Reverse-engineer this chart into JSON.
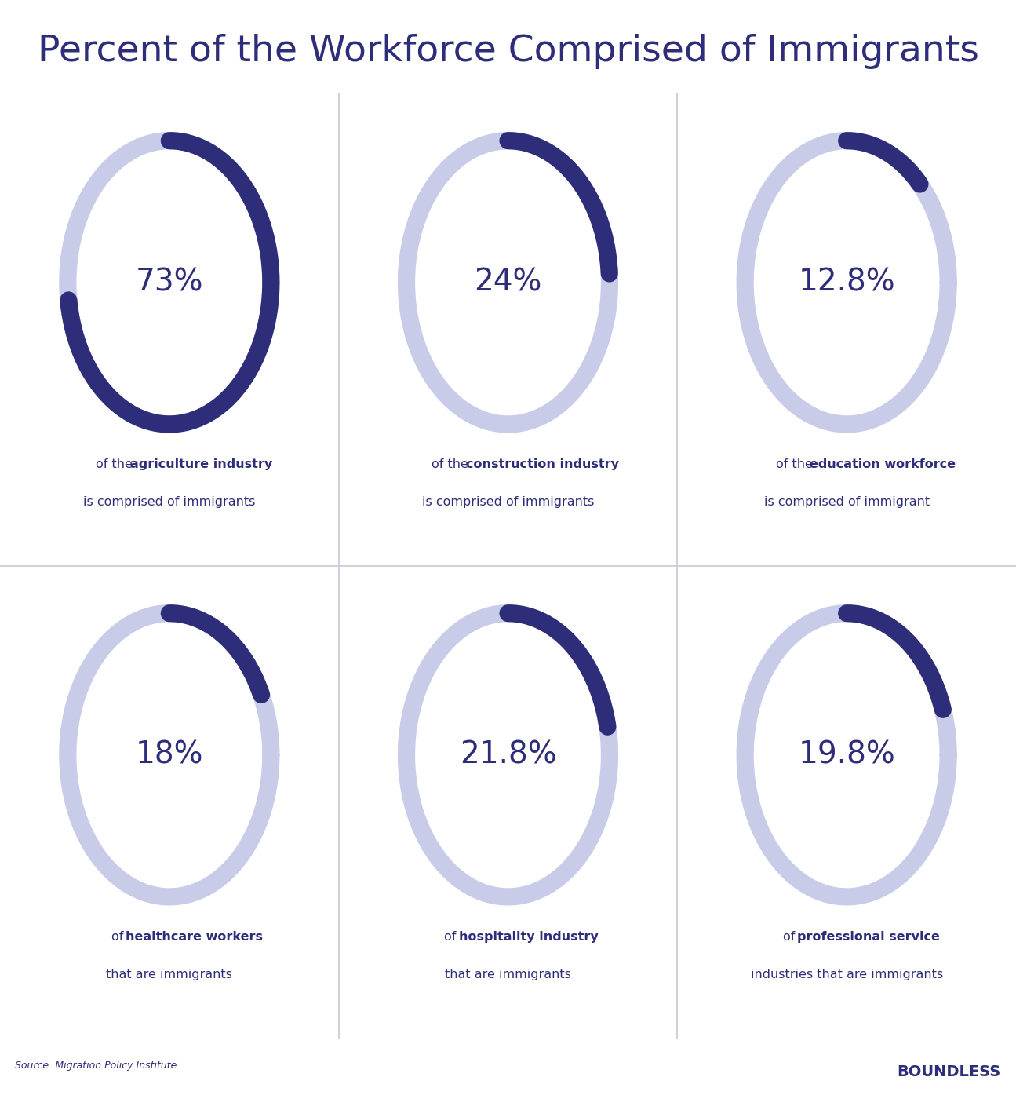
{
  "title": "Percent of the Workforce Comprised of Immigrants",
  "title_color": "#2d2d7a",
  "title_fontsize": 34,
  "background_color": "#ffffff",
  "cell_background_color": "#eeeef5",
  "grid_color": "#c8c8d8",
  "dark_blue": "#2d2d7a",
  "light_blue": "#c8cce8",
  "source_text": "Source: Migration Policy Institute",
  "brand_text": "BOUNDLESS",
  "cells": [
    {
      "value": "73%",
      "percent": 73,
      "line1_normal": "of the ",
      "line1_bold": "agriculture industry",
      "line2": "is comprised of immigrants",
      "row": 0,
      "col": 0
    },
    {
      "value": "24%",
      "percent": 24,
      "line1_normal": "of the ",
      "line1_bold": "construction industry",
      "line2": "is comprised of immigrants",
      "row": 0,
      "col": 1
    },
    {
      "value": "12.8%",
      "percent": 12.8,
      "line1_normal": "of the ",
      "line1_bold": "education workforce",
      "line2": "is comprised of immigrant",
      "row": 0,
      "col": 2
    },
    {
      "value": "18%",
      "percent": 18,
      "line1_normal": "of ",
      "line1_bold": "healthcare workers",
      "line2": "that are immigrants",
      "row": 1,
      "col": 0
    },
    {
      "value": "21.8%",
      "percent": 21.8,
      "line1_normal": "of ",
      "line1_bold": "hospitality industry",
      "line2": "that are immigrants",
      "row": 1,
      "col": 1
    },
    {
      "value": "19.8%",
      "percent": 19.8,
      "line1_normal": "of ",
      "line1_bold": "professional service",
      "line2": "industries that are immigrants",
      "row": 1,
      "col": 2
    }
  ]
}
